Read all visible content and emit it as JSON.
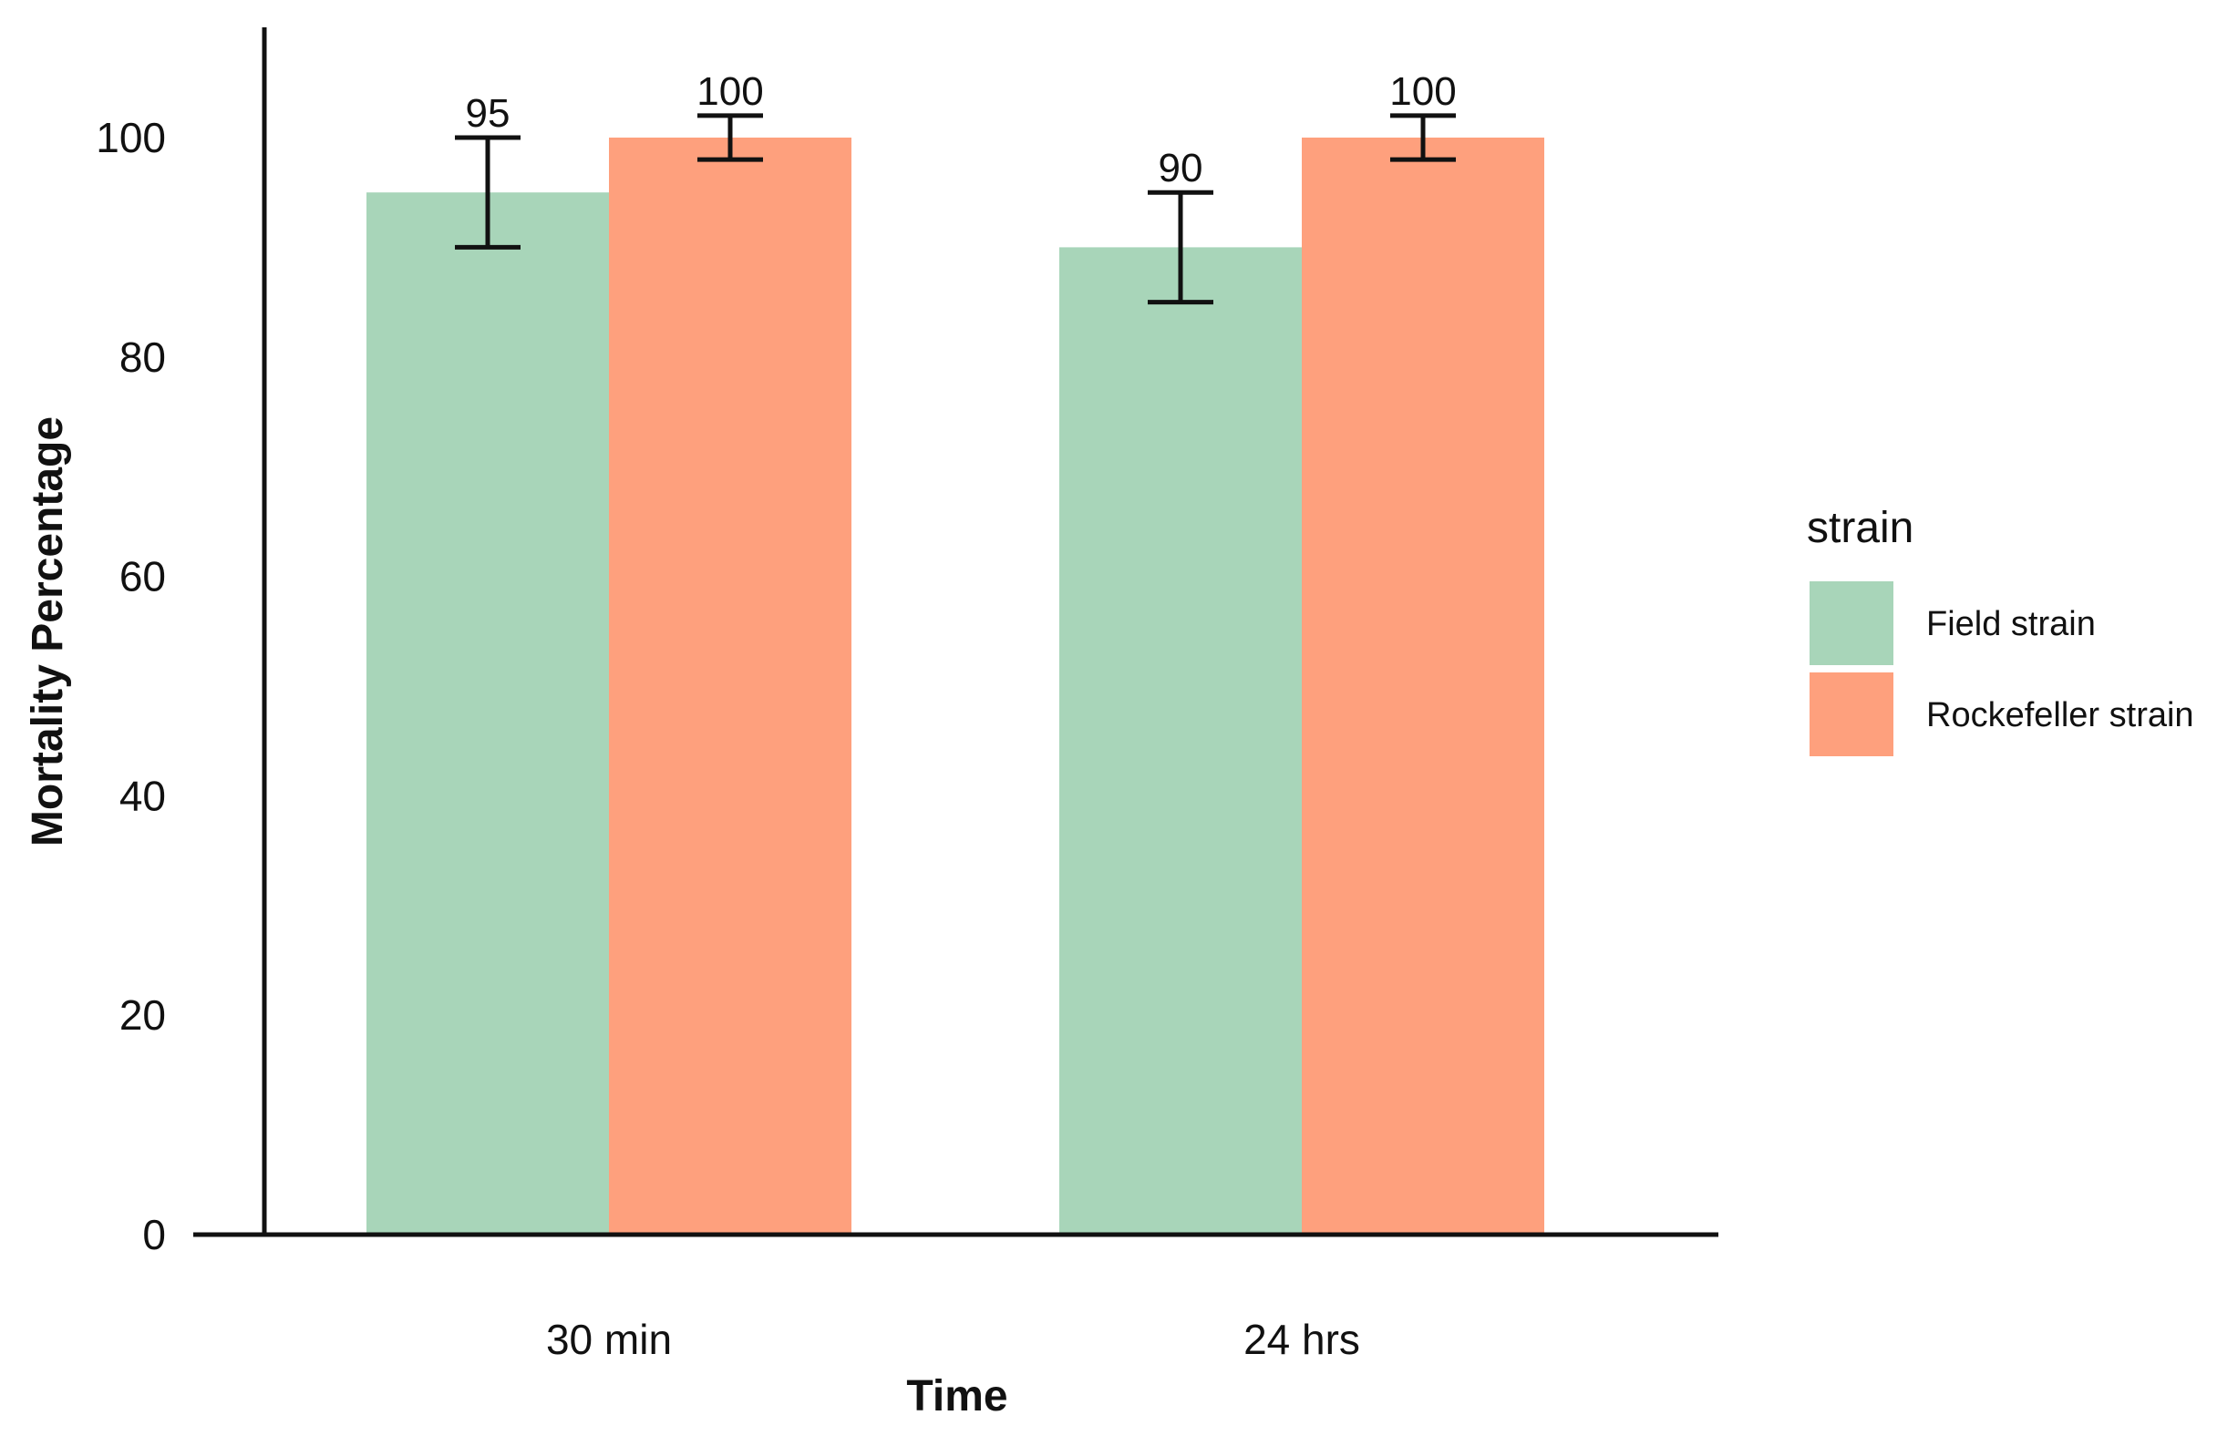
{
  "chart_data": {
    "type": "bar",
    "title": "",
    "xlabel": "Time",
    "ylabel": "Mortality Percentage",
    "categories": [
      "30 min",
      "24 hrs"
    ],
    "series": [
      {
        "name": "Field strain",
        "color": "#a8d5b9",
        "values": [
          95,
          90
        ],
        "error_low": [
          90,
          85
        ],
        "error_high": [
          100,
          95
        ],
        "labels": [
          "95",
          "90"
        ]
      },
      {
        "name": "Rockefeller strain",
        "color": "#fea07d",
        "values": [
          100,
          100
        ],
        "error_low": [
          98,
          98
        ],
        "error_high": [
          102,
          102
        ],
        "labels": [
          "100",
          "100"
        ]
      }
    ],
    "ylim": [
      0,
      110
    ],
    "yticks": [
      0,
      20,
      40,
      60,
      80,
      100
    ],
    "ytick_labels": [
      "0",
      "20",
      "40",
      "60",
      "80",
      "100"
    ],
    "grid": false,
    "legend": {
      "title": "strain",
      "position": "right",
      "entries": [
        "Field strain",
        "Rockefeller strain"
      ]
    }
  }
}
